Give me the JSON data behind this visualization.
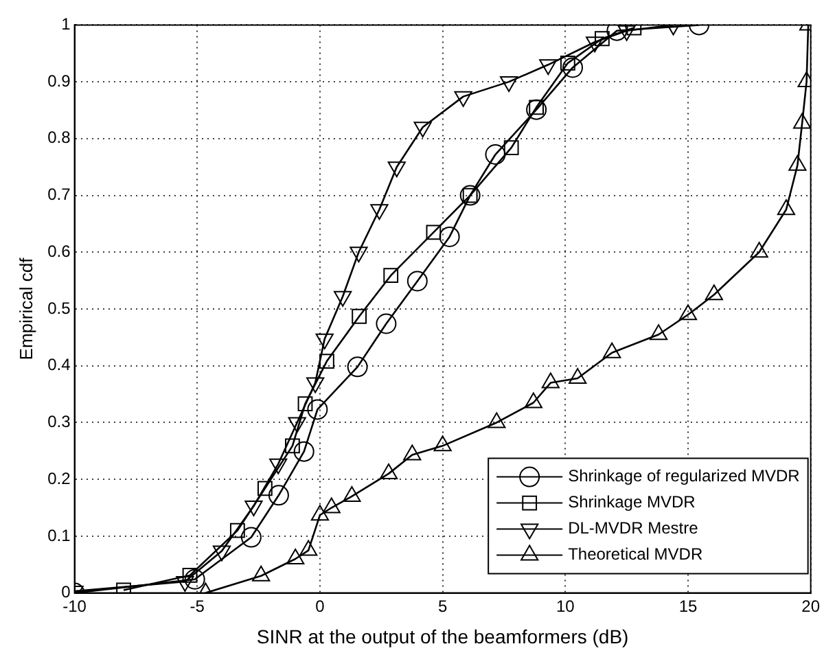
{
  "chart_data": {
    "type": "line",
    "xlabel": "SINR at the output of the beamformers (dB)",
    "ylabel": "Empirical cdf",
    "xlim": [
      -10,
      20
    ],
    "ylim": [
      0,
      1
    ],
    "xticks": [
      -10,
      -5,
      0,
      5,
      10,
      15,
      20
    ],
    "yticks": [
      0,
      0.1,
      0.2,
      0.3,
      0.4,
      0.5,
      0.6,
      0.7,
      0.8,
      0.9,
      1
    ],
    "grid": true,
    "legend": "bottom right",
    "line_style": "solid",
    "series": [
      {
        "name": "Shrinkage of regularized MVDR",
        "color": "#000000",
        "marker": "circle",
        "x": [
          -10,
          -5.1,
          -2.8,
          -1.68,
          -0.65,
          -0.1,
          1.53,
          2.7,
          3.97,
          5.28,
          6.12,
          7.15,
          8.82,
          10.3,
          12.1,
          15.45
        ],
        "values": [
          0,
          0.024,
          0.098,
          0.172,
          0.249,
          0.323,
          0.398,
          0.474,
          0.549,
          0.627,
          0.7,
          0.772,
          0.851,
          0.925,
          0.99,
          1
        ]
      },
      {
        "name": "Shrinkage MVDR",
        "color": "#000000",
        "marker": "square",
        "x": [
          -8,
          -5.3,
          -3.36,
          -2.24,
          -1.12,
          -0.6,
          0.28,
          1.6,
          2.89,
          4.63,
          6.12,
          7.8,
          8.82,
          10.1,
          11.5,
          12.8
        ],
        "values": [
          0.005,
          0.031,
          0.11,
          0.184,
          0.259,
          0.333,
          0.408,
          0.487,
          0.559,
          0.635,
          0.7,
          0.784,
          0.855,
          0.933,
          0.976,
          0.995
        ]
      },
      {
        "name": "DL-MVDR Mestre",
        "color": "#000000",
        "marker": "triangle_down",
        "x": [
          -10,
          -5.5,
          -4,
          -2.7,
          -1.7,
          -0.93,
          -0.19,
          0.19,
          0.93,
          1.58,
          2.42,
          3.13,
          4.19,
          5.84,
          7.7,
          9.3,
          11.2,
          12.5,
          14.4
        ],
        "values": [
          0.003,
          0.02,
          0.074,
          0.153,
          0.227,
          0.3,
          0.37,
          0.447,
          0.522,
          0.6,
          0.675,
          0.75,
          0.82,
          0.874,
          0.9,
          0.93,
          0.97,
          0.99,
          1
        ]
      },
      {
        "name": "Theoretical MVDR",
        "color": "#000000",
        "marker": "triangle",
        "x": [
          -4.66,
          -2.4,
          -1,
          -0.47,
          0,
          0.47,
          1.3,
          2.8,
          3.76,
          5,
          7.2,
          8.7,
          9.4,
          10.5,
          11.9,
          13.8,
          15,
          16.06,
          17.9,
          19,
          19.46,
          19.65,
          19.83,
          19.9
        ],
        "values": [
          0,
          0.03,
          0.06,
          0.075,
          0.137,
          0.15,
          0.17,
          0.21,
          0.243,
          0.259,
          0.3,
          0.335,
          0.37,
          0.378,
          0.423,
          0.455,
          0.49,
          0.525,
          0.6,
          0.675,
          0.753,
          0.827,
          0.9,
          1
        ]
      }
    ]
  }
}
